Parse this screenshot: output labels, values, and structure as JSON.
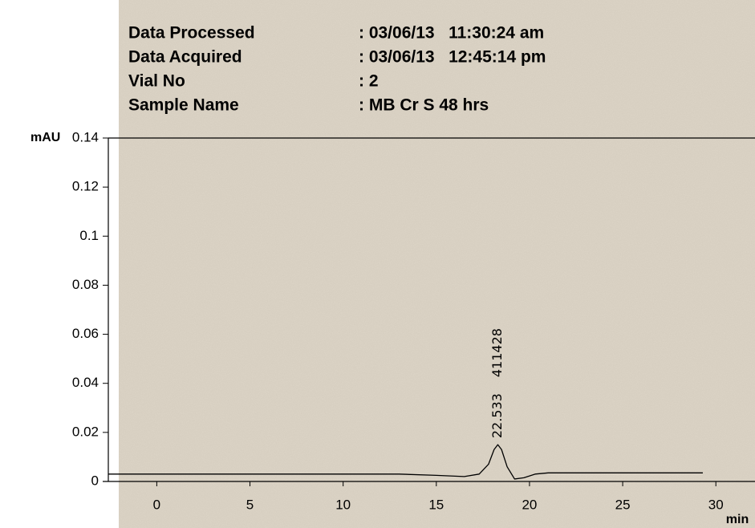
{
  "chart_data": {
    "type": "line",
    "info": [
      {
        "label": "Data Processed",
        "value": ": 03/06/13   11:30:24 am"
      },
      {
        "label": "Data Acquired",
        "value": ": 03/06/13   12:45:14 pm"
      },
      {
        "label": "Vial No",
        "value": ": 2"
      },
      {
        "label": "Sample Name",
        "value": ": MB Cr S 48 hrs"
      }
    ],
    "y_label": "mAU",
    "x_label": "min",
    "annotations": [
      "22.533",
      "411428"
    ],
    "x": [
      -2.6,
      5,
      10,
      13,
      15,
      16.5,
      17.3,
      17.8,
      18.1,
      18.3,
      18.5,
      18.8,
      19.2,
      19.7,
      20.3,
      21,
      25,
      29.3
    ],
    "series": [
      {
        "name": "trace",
        "color": "#000000",
        "values": [
          0.003,
          0.003,
          0.003,
          0.003,
          0.0025,
          0.002,
          0.003,
          0.007,
          0.013,
          0.015,
          0.013,
          0.006,
          0.001,
          0.0015,
          0.003,
          0.0035,
          0.0035,
          0.0035
        ]
      }
    ],
    "xlim": [
      -2.6,
      32.1
    ],
    "xticks": [
      0,
      5,
      10,
      15,
      20,
      25,
      30
    ],
    "ylim": [
      0,
      0.14
    ],
    "yticks": [
      0,
      0.02,
      0.04,
      0.06,
      0.08,
      0.1,
      0.12,
      0.14
    ]
  }
}
